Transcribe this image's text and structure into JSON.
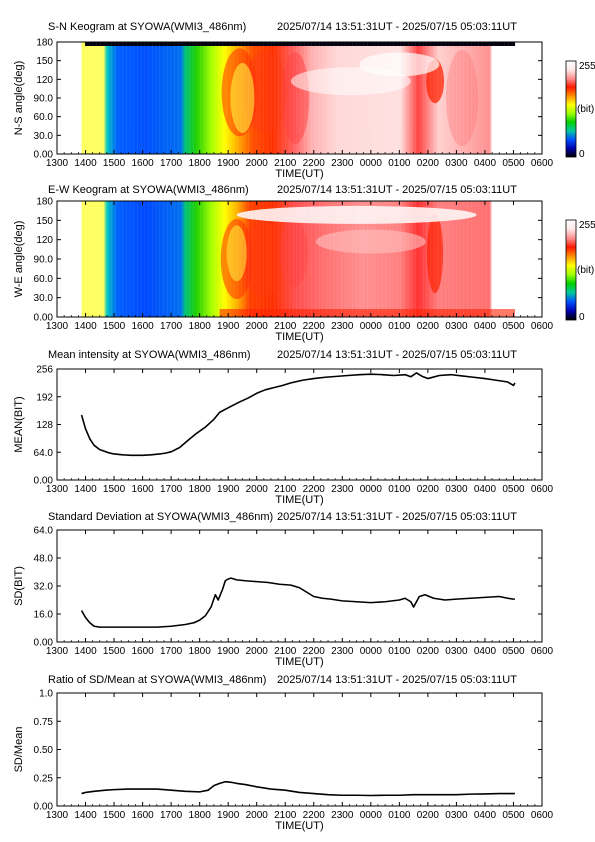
{
  "figure": {
    "time_range": "2025/07/14 13:51:31UT - 2025/07/15 05:03:11UT",
    "x_ticks": [
      "1300",
      "1400",
      "1500",
      "1600",
      "1700",
      "1800",
      "1900",
      "2000",
      "2100",
      "2200",
      "2300",
      "0000",
      "0100",
      "0200",
      "0300",
      "0400",
      "0500",
      "0600"
    ],
    "x_label": "TIME(UT)"
  },
  "colors": {
    "colorbar": [
      "#000000",
      "#0000b0",
      "#0050ff",
      "#00c8a0",
      "#00d000",
      "#a0ff00",
      "#ffff00",
      "#ff9000",
      "#ff1800",
      "#ff9090",
      "#ffe8e8",
      "#ffffff"
    ]
  },
  "chart_data": [
    {
      "id": "ns_keogram",
      "type": "heatmap",
      "title": "S-N Keogram at SYOWA(WMI3_486nm)",
      "ylabel": "N-S angle(deg)",
      "xlabel": "TIME(UT)",
      "y_ticks": [
        "0.00",
        "30.0",
        "60.0",
        "90.0",
        "120",
        "150",
        "180"
      ],
      "ylim": [
        0,
        180
      ],
      "data_range_ut": [
        "13:51",
        "05:03"
      ],
      "colorbar": {
        "min_label": "0",
        "max_label": "255",
        "unit_label": "(bit)"
      }
    },
    {
      "id": "ew_keogram",
      "type": "heatmap",
      "title": "E-W Keogram at SYOWA(WMI3_486nm)",
      "ylabel": "W-E angle(deg)",
      "xlabel": "TIME(UT)",
      "y_ticks": [
        "0.00",
        "30.0",
        "60.0",
        "90.0",
        "120",
        "150",
        "180"
      ],
      "ylim": [
        0,
        180
      ],
      "data_range_ut": [
        "13:51",
        "05:03"
      ],
      "colorbar": {
        "min_label": "0",
        "max_label": "255",
        "unit_label": "(bit)"
      }
    },
    {
      "id": "mean",
      "type": "line",
      "title": "Mean intensity at SYOWA(WMI3_486nm)",
      "ylabel": "MEAN(BIT)",
      "xlabel": "TIME(UT)",
      "y_ticks": [
        "0.00",
        "64.0",
        "128",
        "192",
        "256"
      ],
      "ylim": [
        0,
        256
      ],
      "x_hours": [
        13.86,
        14.0,
        14.15,
        14.3,
        14.5,
        14.8,
        15.0,
        15.3,
        15.6,
        16.0,
        16.3,
        16.6,
        16.8,
        17.0,
        17.3,
        17.6,
        17.9,
        18.2,
        18.5,
        18.7,
        18.9,
        19.1,
        19.4,
        19.7,
        20.0,
        20.3,
        20.6,
        20.9,
        21.2,
        21.6,
        22.0,
        22.4,
        22.8,
        23.2,
        23.6,
        24.0,
        24.4,
        24.8,
        25.2,
        25.4,
        25.6,
        25.8,
        26.0,
        26.4,
        26.8,
        27.2,
        27.6,
        28.0,
        28.4,
        28.8,
        29.0,
        29.05
      ],
      "values": [
        150,
        118,
        95,
        80,
        70,
        63,
        60,
        58,
        57,
        57,
        58,
        60,
        62,
        65,
        75,
        92,
        108,
        122,
        140,
        156,
        163,
        170,
        180,
        189,
        200,
        208,
        213,
        218,
        224,
        230,
        234,
        237,
        239,
        241,
        243,
        244,
        243,
        241,
        243,
        238,
        247,
        239,
        234,
        241,
        243,
        240,
        237,
        234,
        230,
        226,
        218,
        224
      ]
    },
    {
      "id": "sd",
      "type": "line",
      "title": "Standard Deviation at SYOWA(WMI3_486nm)",
      "ylabel": "SD(BIT)",
      "xlabel": "TIME(UT)",
      "y_ticks": [
        "0.00",
        "16.0",
        "32.0",
        "48.0",
        "64.0"
      ],
      "ylim": [
        0,
        64
      ],
      "x_hours": [
        13.86,
        14.0,
        14.15,
        14.3,
        14.5,
        15.0,
        15.5,
        16.0,
        16.5,
        17.0,
        17.5,
        17.8,
        18.0,
        18.2,
        18.4,
        18.55,
        18.65,
        18.8,
        18.9,
        19.0,
        19.1,
        19.3,
        19.6,
        20.0,
        20.4,
        20.8,
        21.2,
        21.5,
        21.8,
        22.0,
        22.3,
        22.6,
        23.0,
        23.5,
        24.0,
        24.5,
        25.0,
        25.2,
        25.4,
        25.5,
        25.7,
        25.9,
        26.2,
        26.6,
        27.0,
        27.5,
        28.0,
        28.5,
        28.8,
        29.0,
        29.05
      ],
      "values": [
        18,
        14,
        11,
        9,
        8.5,
        8.5,
        8.5,
        8.5,
        8.5,
        9,
        10,
        11,
        12.5,
        15,
        20,
        27,
        24,
        30,
        35,
        36,
        36.5,
        35.5,
        35,
        34.5,
        34,
        33,
        32.5,
        31,
        28,
        26,
        25,
        24.5,
        23.5,
        23,
        22.5,
        23,
        24,
        25,
        23,
        20,
        26,
        27,
        25,
        24,
        24.5,
        25,
        25.5,
        26,
        25,
        24.5,
        24.5
      ]
    },
    {
      "id": "ratio",
      "type": "line",
      "title": "Ratio of SD/Mean at SYOWA(WMI3_486nm)",
      "ylabel": "SD/Mean",
      "xlabel": "TIME(UT)",
      "y_ticks": [
        "0.00",
        "0.25",
        "0.50",
        "0.75",
        "1.0"
      ],
      "ylim": [
        0,
        1.0
      ],
      "x_hours": [
        13.86,
        14.0,
        14.3,
        14.7,
        15.0,
        15.5,
        16.0,
        16.5,
        17.0,
        17.5,
        18.0,
        18.3,
        18.5,
        18.7,
        18.9,
        19.1,
        19.3,
        19.6,
        20.0,
        20.5,
        21.0,
        21.5,
        22.0,
        22.5,
        23.0,
        23.5,
        24.0,
        24.5,
        25.0,
        25.5,
        26.0,
        26.5,
        27.0,
        27.5,
        28.0,
        28.5,
        29.0,
        29.05
      ],
      "values": [
        0.11,
        0.12,
        0.13,
        0.14,
        0.145,
        0.15,
        0.15,
        0.15,
        0.14,
        0.13,
        0.125,
        0.14,
        0.18,
        0.2,
        0.215,
        0.21,
        0.2,
        0.19,
        0.17,
        0.15,
        0.14,
        0.12,
        0.11,
        0.1,
        0.095,
        0.095,
        0.093,
        0.095,
        0.095,
        0.1,
        0.1,
        0.1,
        0.1,
        0.105,
        0.107,
        0.11,
        0.11,
        0.11
      ]
    }
  ]
}
